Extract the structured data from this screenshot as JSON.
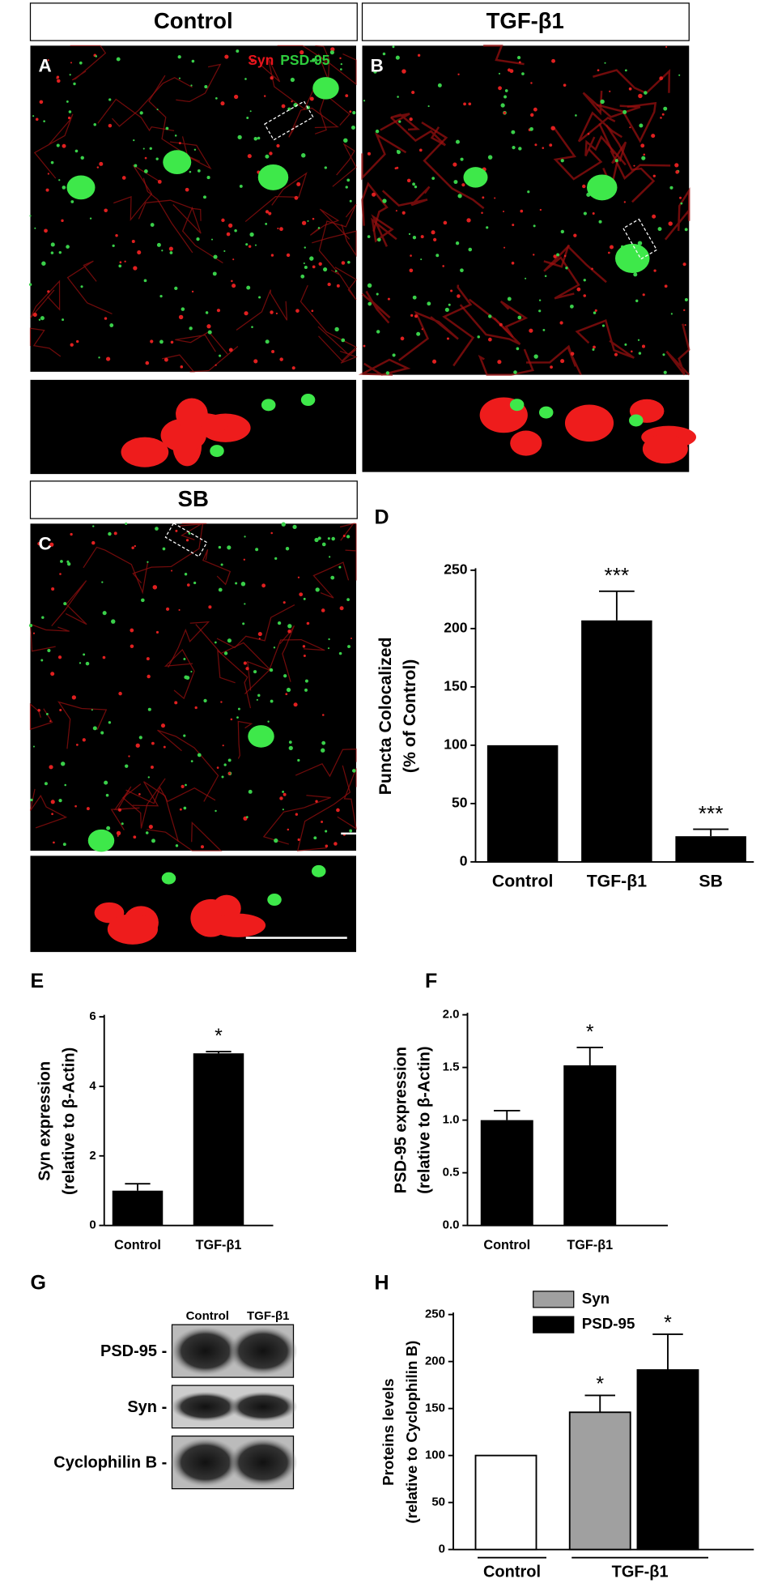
{
  "images": {
    "headers": [
      "Control",
      "TGF-β1",
      "SB"
    ],
    "letters": [
      "A",
      "B",
      "C"
    ],
    "stain_labels": [
      {
        "text": "Syn",
        "color": "#e8141c"
      },
      {
        "text": "PSD-95",
        "color": "#2ecc3c"
      }
    ]
  },
  "blot": {
    "letter": "G",
    "columns": [
      "Control",
      "TGF-β1"
    ],
    "rows": [
      "PSD-95 -",
      "Syn -",
      "Cyclophilin B -"
    ]
  },
  "chart_data": [
    {
      "type": "bar",
      "panel": "D",
      "y_label": [
        "Puncta Colocalized",
        "(% of Control)"
      ],
      "categories": [
        "Control",
        "TGF-β1",
        "SB"
      ],
      "values": [
        100,
        207,
        22
      ],
      "errors": [
        0,
        25,
        6
      ],
      "annotations": [
        null,
        "***",
        "***"
      ],
      "color": "#000000",
      "ylim": [
        0,
        250
      ],
      "yticks": [
        0,
        50,
        100,
        150,
        200,
        250
      ]
    },
    {
      "type": "bar",
      "panel": "E",
      "y_label": [
        "Syn  expression",
        "(relative to β-Actin)"
      ],
      "categories": [
        "Control",
        "TGF-β1"
      ],
      "values": [
        1.0,
        4.95
      ],
      "errors": [
        0.2,
        0.05
      ],
      "annotations": [
        null,
        "*"
      ],
      "color": "#000000",
      "ylim": [
        0,
        6
      ],
      "yticks": [
        0,
        2,
        4,
        6
      ]
    },
    {
      "type": "bar",
      "panel": "F",
      "y_label": [
        "PSD-95 expression",
        "(relative to β-Actin)"
      ],
      "categories": [
        "Control",
        "TGF-β1"
      ],
      "values": [
        1.0,
        1.52
      ],
      "errors": [
        0.09,
        0.17
      ],
      "annotations": [
        null,
        "*"
      ],
      "color": "#000000",
      "ylim": [
        0,
        2
      ],
      "yticks": [
        {
          "value": 0,
          "label": "0.0"
        },
        0.5,
        {
          "value": 1,
          "label": "1.0"
        },
        1.5,
        {
          "value": 2,
          "label": "2.0"
        }
      ]
    },
    {
      "type": "grouped-bar",
      "panel": "H",
      "y_label": [
        "Proteins  levels",
        "(relative to Cyclophilin B)"
      ],
      "groups": [
        {
          "label": "Control",
          "bars": [
            {
              "value": 100,
              "error": 0,
              "color": "#ffffff"
            }
          ]
        },
        {
          "label": "TGF-β1",
          "bars": [
            {
              "name": "Syn",
              "value": 146,
              "error": 18,
              "color": "#a0a0a0",
              "annotation": "*"
            },
            {
              "name": "PSD-95",
              "value": 191,
              "error": 38,
              "color": "#000000",
              "annotation": "*"
            }
          ]
        }
      ],
      "ylim": [
        0,
        250
      ],
      "yticks": [
        0,
        50,
        100,
        150,
        200,
        250
      ]
    }
  ]
}
